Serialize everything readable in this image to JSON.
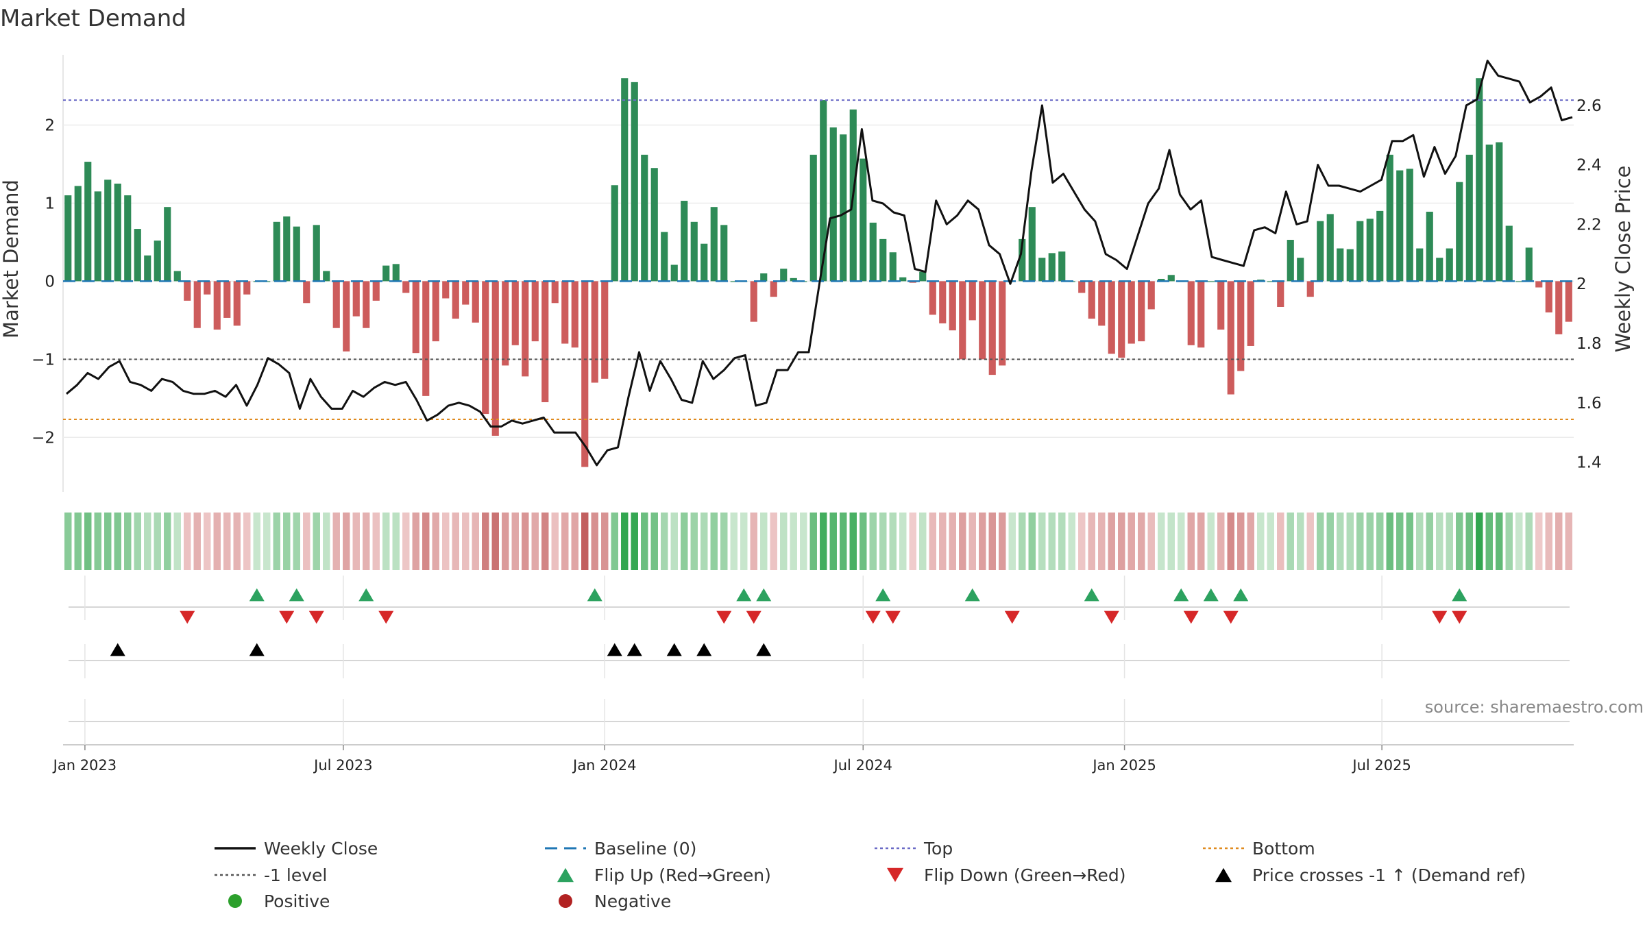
{
  "chart_data": {
    "type": "bar",
    "title": "Market Demand",
    "ylabel": "Market Demand",
    "y2label": "Weekly Close Price",
    "ylim": [
      -2.7,
      2.9
    ],
    "y2lim": [
      1.3,
      2.77
    ],
    "yticks": [
      {
        "value": 2,
        "label": "2"
      },
      {
        "value": 1,
        "label": "1"
      },
      {
        "value": 0,
        "label": "0"
      },
      {
        "value": -1,
        "label": "−1"
      },
      {
        "value": -2,
        "label": "−2"
      }
    ],
    "y2ticks": [
      {
        "value": 2.6,
        "label": "2.6"
      },
      {
        "value": 2.4,
        "label": "2.4"
      },
      {
        "value": 2.2,
        "label": "2.2"
      },
      {
        "value": 2.0,
        "label": "2"
      },
      {
        "value": 1.8,
        "label": "1.8"
      },
      {
        "value": 1.6,
        "label": "1.6"
      },
      {
        "value": 1.4,
        "label": "1.4"
      }
    ],
    "xticks": [
      {
        "index": 2.2,
        "label": "Jan 2023"
      },
      {
        "index": 28.2,
        "label": "Jul 2023"
      },
      {
        "index": 54.5,
        "label": "Jan 2024"
      },
      {
        "index": 80.5,
        "label": "Jul 2024"
      },
      {
        "index": 106.8,
        "label": "Jan 2025"
      },
      {
        "index": 132.7,
        "label": "Jul 2025"
      }
    ],
    "ref_lines": {
      "top": 2.32,
      "minus_one": -1.0,
      "bottom": -1.77,
      "baseline": 0
    },
    "demand": [
      1.1,
      1.22,
      1.53,
      1.15,
      1.3,
      1.25,
      1.1,
      0.67,
      0.33,
      0.52,
      0.95,
      0.13,
      -0.25,
      -0.6,
      -0.17,
      -0.62,
      -0.47,
      -0.57,
      -0.17,
      0,
      0,
      0.76,
      0.83,
      0.7,
      -0.28,
      0.72,
      0.13,
      -0.6,
      -0.9,
      -0.45,
      -0.6,
      -0.25,
      0.2,
      0.22,
      -0.15,
      -0.92,
      -1.47,
      -0.77,
      -0.22,
      -0.48,
      -0.3,
      -0.53,
      -1.7,
      -1.98,
      -1.08,
      -0.82,
      -1.22,
      -0.77,
      -1.55,
      -0.28,
      -0.8,
      -0.85,
      -2.38,
      -1.3,
      -1.25,
      1.23,
      2.6,
      2.55,
      1.62,
      1.45,
      0.63,
      0.21,
      1.03,
      0.76,
      0.48,
      0.95,
      0.72,
      0,
      0,
      -0.52,
      0.1,
      -0.2,
      0.16,
      0.04,
      0,
      1.62,
      2.32,
      1.97,
      1.88,
      2.2,
      1.57,
      0.75,
      0.54,
      0.37,
      0.05,
      -0.02,
      0.12,
      -0.43,
      -0.54,
      -0.63,
      -1.0,
      -0.5,
      -1.0,
      -1.2,
      -1.08,
      0,
      0.54,
      0.95,
      0.3,
      0.36,
      0.38,
      0,
      -0.15,
      -0.48,
      -0.57,
      -0.93,
      -0.98,
      -0.8,
      -0.77,
      -0.36,
      0.03,
      0.08,
      0,
      -0.82,
      -0.85,
      0,
      -0.62,
      -1.45,
      -1.15,
      -0.83,
      0.02,
      0,
      -0.33,
      0.53,
      0.3,
      -0.2,
      0.77,
      0.86,
      0.42,
      0.41,
      0.77,
      0.8,
      0.9,
      1.62,
      1.42,
      1.44,
      0.42,
      0.89,
      0.3,
      0.42,
      1.27,
      1.62,
      2.6,
      1.75,
      1.78,
      0.71,
      0,
      0.43,
      -0.08,
      -0.4,
      -0.68,
      -0.52
    ],
    "close": [
      1.63,
      1.66,
      1.7,
      1.68,
      1.72,
      1.74,
      1.67,
      1.66,
      1.64,
      1.68,
      1.67,
      1.64,
      1.63,
      1.63,
      1.64,
      1.62,
      1.66,
      1.59,
      1.66,
      1.75,
      1.73,
      1.7,
      1.58,
      1.68,
      1.62,
      1.58,
      1.58,
      1.64,
      1.62,
      1.65,
      1.67,
      1.66,
      1.67,
      1.61,
      1.54,
      1.56,
      1.59,
      1.6,
      1.59,
      1.57,
      1.52,
      1.52,
      1.54,
      1.53,
      1.54,
      1.55,
      1.5,
      1.5,
      1.5,
      1.45,
      1.39,
      1.44,
      1.45,
      1.62,
      1.77,
      1.64,
      1.74,
      1.68,
      1.61,
      1.6,
      1.74,
      1.68,
      1.71,
      1.75,
      1.76,
      1.59,
      1.6,
      1.71,
      1.71,
      1.77,
      1.77,
      2.0,
      2.22,
      2.23,
      2.25,
      2.52,
      2.28,
      2.27,
      2.24,
      2.23,
      2.05,
      2.04,
      2.28,
      2.2,
      2.23,
      2.28,
      2.25,
      2.13,
      2.1,
      2.0,
      2.1,
      2.38,
      2.6,
      2.34,
      2.37,
      2.31,
      2.25,
      2.21,
      2.1,
      2.08,
      2.05,
      2.16,
      2.27,
      2.32,
      2.45,
      2.3,
      2.25,
      2.28,
      2.09,
      2.08,
      2.07,
      2.06,
      2.18,
      2.19,
      2.17,
      2.31,
      2.2,
      2.21,
      2.4,
      2.33,
      2.33,
      2.32,
      2.31,
      2.33,
      2.35,
      2.48,
      2.48,
      2.5,
      2.36,
      2.46,
      2.37,
      2.43,
      2.6,
      2.62,
      2.75,
      2.7,
      2.69,
      2.68,
      2.61,
      2.63,
      2.66,
      2.55,
      2.56
    ],
    "flip_up": [
      19,
      23,
      30,
      53,
      68,
      70,
      82,
      91,
      103,
      112,
      115,
      118,
      140
    ],
    "flip_down": [
      12,
      22,
      25,
      32,
      66,
      69,
      81,
      83,
      95,
      105,
      113,
      117,
      138,
      140
    ],
    "price_cross_minus1_up": [
      5,
      19,
      55,
      57,
      61,
      64,
      70
    ],
    "legend": [
      {
        "label": "Weekly Close",
        "marker": "solid-line",
        "color": "#111111"
      },
      {
        "label": "Baseline (0)",
        "marker": "dash-line",
        "color": "#1f77b4"
      },
      {
        "label": "Top",
        "marker": "dot-line",
        "color": "#6a6ac6"
      },
      {
        "label": "Bottom",
        "marker": "dot-line",
        "color": "#e08a1e"
      },
      {
        "label": "-1 level",
        "marker": "dot-line",
        "color": "#555555"
      },
      {
        "label": "Flip Up (Red→Green)",
        "marker": "triangle-up",
        "color": "#2ca25f"
      },
      {
        "label": "Flip Down (Green→Red)",
        "marker": "triangle-down",
        "color": "#d62728"
      },
      {
        "label": "Price crosses -1 ↑ (Demand ref)",
        "marker": "triangle-up",
        "color": "#000000"
      },
      {
        "label": "Positive",
        "marker": "circle",
        "color": "#2ca02c"
      },
      {
        "label": "Negative",
        "marker": "circle",
        "color": "#b22222"
      }
    ],
    "source": "source: sharemaestro.com",
    "colors": {
      "positive": "#2e8b57",
      "negative": "#cd5c5c",
      "close": "#111111",
      "baseline": "#1f77b4",
      "top": "#6a6ac6",
      "bottom": "#e08a1e",
      "minus_one": "#555555"
    }
  }
}
